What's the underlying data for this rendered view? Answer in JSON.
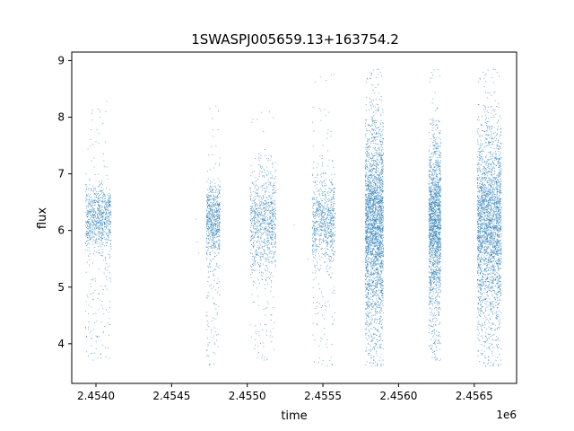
{
  "chart_data": {
    "type": "scatter",
    "title": "1SWASPJ005659.13+163754.2",
    "xlabel": "time",
    "ylabel": "flux",
    "x_offset_label": "1e6",
    "xlim": [
      2453840,
      2456780
    ],
    "ylim": [
      3.3,
      9.15
    ],
    "x_ticks": [
      2.454,
      2.4545,
      2.455,
      2.4555,
      2.456,
      2.4565
    ],
    "x_tick_labels": [
      "2.4540",
      "2.4545",
      "2.4550",
      "2.4555",
      "2.4560",
      "2.4565"
    ],
    "y_ticks": [
      4,
      5,
      6,
      7,
      8,
      9
    ],
    "y_tick_labels": [
      "4",
      "5",
      "6",
      "7",
      "8",
      "9"
    ],
    "grid": false,
    "marker_color": "#1f77b4",
    "series": [
      {
        "clusters": [
          {
            "x_start": 2453930,
            "x_end": 2454100,
            "flux_center": 6.2,
            "flux_spread": 0.3,
            "flux_min": 3.7,
            "flux_max": 8.3,
            "density": 900
          },
          {
            "x_start": 2454730,
            "x_end": 2454820,
            "flux_center": 6.2,
            "flux_spread": 0.35,
            "flux_min": 3.6,
            "flux_max": 8.2,
            "density": 700
          },
          {
            "x_start": 2455020,
            "x_end": 2455190,
            "flux_center": 6.2,
            "flux_spread": 0.45,
            "flux_min": 3.7,
            "flux_max": 8.1,
            "density": 900
          },
          {
            "x_start": 2455430,
            "x_end": 2455580,
            "flux_center": 6.2,
            "flux_spread": 0.4,
            "flux_min": 3.6,
            "flux_max": 8.8,
            "density": 800
          },
          {
            "x_start": 2455780,
            "x_end": 2455900,
            "flux_center": 6.2,
            "flux_spread": 0.85,
            "flux_min": 3.6,
            "flux_max": 8.85,
            "density": 2600
          },
          {
            "x_start": 2456200,
            "x_end": 2456280,
            "flux_center": 6.2,
            "flux_spread": 0.7,
            "flux_min": 3.7,
            "flux_max": 8.85,
            "density": 1700
          },
          {
            "x_start": 2456520,
            "x_end": 2456680,
            "flux_center": 6.2,
            "flux_spread": 0.8,
            "flux_min": 3.6,
            "flux_max": 8.85,
            "density": 2600
          }
        ],
        "isolated_points": [
          {
            "x": 2454660,
            "y": 6.2
          },
          {
            "x": 2454670,
            "y": 5.8
          },
          {
            "x": 2454680,
            "y": 5.6
          },
          {
            "x": 2455400,
            "y": 5.5
          },
          {
            "x": 2455310,
            "y": 6.1
          }
        ]
      }
    ]
  }
}
